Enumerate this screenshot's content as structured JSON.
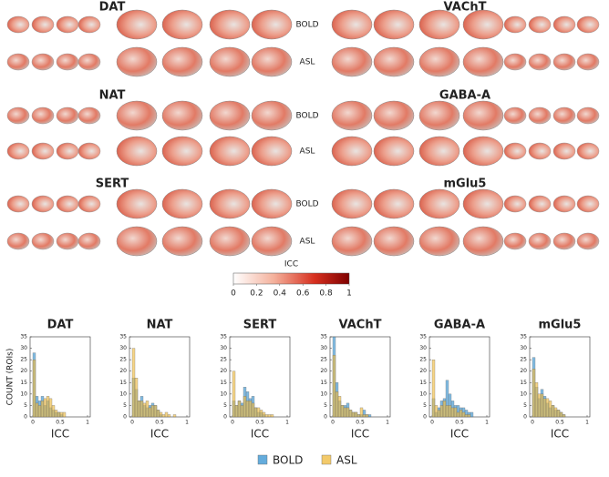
{
  "brain_rows": [
    {
      "left": "DAT",
      "right": "VAChT",
      "labels": [
        "BOLD",
        "ASL"
      ]
    },
    {
      "left": "NAT",
      "right": "GABA-A",
      "labels": [
        "BOLD",
        "ASL"
      ]
    },
    {
      "left": "SERT",
      "right": "mGlu5",
      "labels": [
        "BOLD",
        "ASL"
      ]
    }
  ],
  "colorbar": {
    "title": "ICC",
    "ticks": [
      0,
      0.2,
      0.4,
      0.6,
      0.8,
      1
    ]
  },
  "chart_data": [
    {
      "type": "histogram",
      "title": "DAT",
      "xlabel": "ICC",
      "ylabel": "COUNT (ROIs)",
      "bins": [
        0,
        0.05,
        0.1,
        0.15,
        0.2,
        0.25,
        0.3,
        0.35,
        0.4,
        0.45,
        0.5,
        0.55,
        0.6,
        0.65,
        0.7,
        0.75,
        0.8,
        0.85,
        0.9,
        0.95,
        1
      ],
      "series": [
        {
          "name": "BOLD",
          "color": "#3d97d3",
          "values": [
            28,
            9,
            7,
            9,
            5,
            7,
            4,
            3,
            2,
            2,
            1,
            0,
            0,
            0,
            0,
            0,
            0,
            0,
            0,
            0
          ]
        },
        {
          "name": "ASL",
          "color": "#f0bd45",
          "values": [
            25,
            6,
            5,
            7,
            8,
            9,
            8,
            5,
            3,
            2,
            2,
            2,
            0,
            0,
            0,
            0,
            0,
            0,
            0,
            0
          ]
        }
      ],
      "xlim": [
        -0.05,
        1.05
      ],
      "ylim": [
        0,
        35
      ],
      "xticks": [
        0,
        0.5,
        1
      ],
      "yticks": [
        0,
        5,
        10,
        15,
        20,
        25,
        30,
        35
      ]
    },
    {
      "type": "histogram",
      "title": "NAT",
      "xlabel": "ICC",
      "bins": [
        0,
        0.05,
        0.1,
        0.15,
        0.2,
        0.25,
        0.3,
        0.35,
        0.4,
        0.45,
        0.5,
        0.55,
        0.6,
        0.65,
        0.7,
        0.75,
        0.8,
        0.85,
        0.9,
        0.95,
        1
      ],
      "series": [
        {
          "name": "BOLD",
          "color": "#3d97d3",
          "values": [
            17,
            12,
            7,
            9,
            5,
            4,
            5,
            6,
            5,
            3,
            1,
            0,
            0,
            0,
            0,
            0,
            0,
            0,
            0,
            0
          ]
        },
        {
          "name": "ASL",
          "color": "#f0bd45",
          "values": [
            30,
            17,
            7,
            7,
            6,
            7,
            4,
            5,
            5,
            3,
            2,
            1,
            2,
            1,
            0,
            1,
            0,
            0,
            0,
            0
          ]
        }
      ],
      "xlim": [
        -0.05,
        1.05
      ],
      "ylim": [
        0,
        35
      ],
      "xticks": [
        0,
        0.5,
        1
      ],
      "yticks": [
        0,
        5,
        10,
        15,
        20,
        25,
        30,
        35
      ]
    },
    {
      "type": "histogram",
      "title": "SERT",
      "xlabel": "ICC",
      "bins": [
        0,
        0.05,
        0.1,
        0.15,
        0.2,
        0.25,
        0.3,
        0.35,
        0.4,
        0.45,
        0.5,
        0.55,
        0.6,
        0.65,
        0.7,
        0.75,
        0.8,
        0.85,
        0.9,
        0.95,
        1
      ],
      "series": [
        {
          "name": "BOLD",
          "color": "#3d97d3",
          "values": [
            7,
            5,
            7,
            6,
            13,
            11,
            8,
            9,
            4,
            2,
            2,
            1,
            0,
            0,
            0,
            0,
            0,
            0,
            0,
            0
          ]
        },
        {
          "name": "ASL",
          "color": "#f0bd45",
          "values": [
            20,
            5,
            7,
            5,
            9,
            7,
            7,
            6,
            4,
            4,
            3,
            2,
            1,
            1,
            1,
            0,
            0,
            0,
            0,
            0
          ]
        }
      ],
      "xlim": [
        -0.05,
        1.05
      ],
      "ylim": [
        0,
        35
      ],
      "xticks": [
        0,
        0.5,
        1
      ],
      "yticks": [
        0,
        5,
        10,
        15,
        20,
        25,
        30,
        35
      ]
    },
    {
      "type": "histogram",
      "title": "VAChT",
      "xlabel": "ICC",
      "bins": [
        0,
        0.05,
        0.1,
        0.15,
        0.2,
        0.25,
        0.3,
        0.35,
        0.4,
        0.45,
        0.5,
        0.55,
        0.6,
        0.65,
        0.7,
        0.75,
        0.8,
        0.85,
        0.9,
        0.95,
        1
      ],
      "series": [
        {
          "name": "BOLD",
          "color": "#3d97d3",
          "values": [
            35,
            15,
            7,
            5,
            5,
            6,
            3,
            2,
            2,
            1,
            1,
            3,
            1,
            1,
            0,
            0,
            0,
            0,
            0,
            0
          ]
        },
        {
          "name": "ASL",
          "color": "#f0bd45",
          "values": [
            27,
            11,
            9,
            5,
            4,
            4,
            3,
            2,
            2,
            1,
            4,
            1,
            1,
            0,
            0,
            0,
            0,
            0,
            0,
            0
          ]
        }
      ],
      "xlim": [
        -0.05,
        1.05
      ],
      "ylim": [
        0,
        35
      ],
      "xticks": [
        0,
        0.5,
        1
      ],
      "yticks": [
        0,
        5,
        10,
        15,
        20,
        25,
        30,
        35
      ]
    },
    {
      "type": "histogram",
      "title": "GABA-A",
      "xlabel": "ICC",
      "bins": [
        0,
        0.05,
        0.1,
        0.15,
        0.2,
        0.25,
        0.3,
        0.35,
        0.4,
        0.45,
        0.5,
        0.55,
        0.6,
        0.65,
        0.7,
        0.75,
        0.8,
        0.85,
        0.9,
        0.95,
        1
      ],
      "series": [
        {
          "name": "BOLD",
          "color": "#3d97d3",
          "values": [
            8,
            2,
            4,
            7,
            8,
            16,
            10,
            7,
            5,
            5,
            4,
            4,
            3,
            2,
            2,
            0,
            0,
            0,
            0,
            0
          ]
        },
        {
          "name": "ASL",
          "color": "#f0bd45",
          "values": [
            25,
            5,
            3,
            5,
            7,
            5,
            5,
            4,
            4,
            2,
            3,
            2,
            1,
            1,
            0,
            0,
            0,
            0,
            0,
            0
          ]
        }
      ],
      "xlim": [
        -0.05,
        1.05
      ],
      "ylim": [
        0,
        35
      ],
      "xticks": [
        0,
        0.5,
        1
      ],
      "yticks": [
        0,
        5,
        10,
        15,
        20,
        25,
        30,
        35
      ]
    },
    {
      "type": "histogram",
      "title": "mGlu5",
      "xlabel": "ICC",
      "bins": [
        0,
        0.05,
        0.1,
        0.15,
        0.2,
        0.25,
        0.3,
        0.35,
        0.4,
        0.45,
        0.5,
        0.55,
        0.6,
        0.65,
        0.7,
        0.75,
        0.8,
        0.85,
        0.9,
        0.95,
        1
      ],
      "series": [
        {
          "name": "BOLD",
          "color": "#3d97d3",
          "values": [
            26,
            13,
            8,
            12,
            9,
            6,
            4,
            5,
            3,
            3,
            2,
            1,
            0,
            0,
            0,
            0,
            0,
            0,
            0,
            0
          ]
        },
        {
          "name": "ASL",
          "color": "#f0bd45",
          "values": [
            21,
            15,
            10,
            10,
            8,
            8,
            7,
            5,
            4,
            3,
            2,
            1,
            0,
            0,
            0,
            0,
            0,
            0,
            0,
            0
          ]
        }
      ],
      "xlim": [
        -0.05,
        1.05
      ],
      "ylim": [
        0,
        35
      ],
      "xticks": [
        0,
        0.5,
        1
      ],
      "yticks": [
        0,
        5,
        10,
        15,
        20,
        25,
        30,
        35
      ]
    }
  ]
}
